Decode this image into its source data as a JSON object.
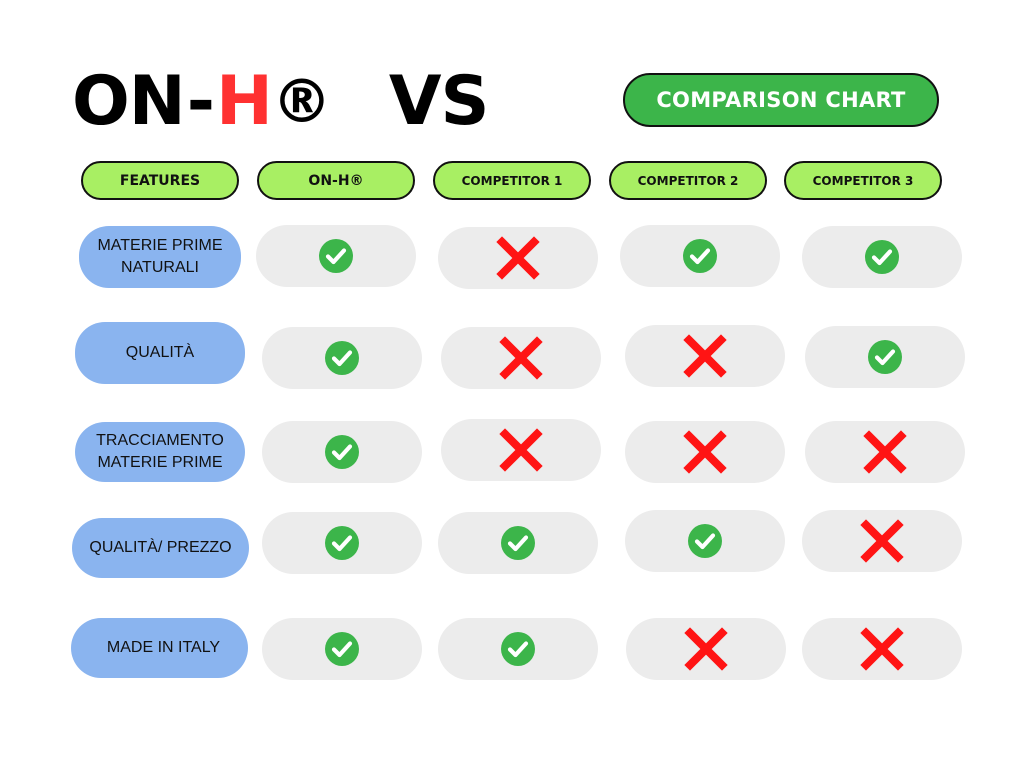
{
  "title": {
    "brand_prefix": "ON",
    "dash": "-",
    "brand_letter": "H",
    "registered": "®",
    "vs": "VS"
  },
  "badge": {
    "label": "COMPARISON CHART"
  },
  "headers": [
    "FEATURES",
    "ON-H®",
    "COMPETITOR 1",
    "COMPETITOR 2",
    "COMPETITOR 3"
  ],
  "rows": [
    {
      "feature": "MATERIE PRIME\nNATURALI",
      "values": [
        "check",
        "cross",
        "check",
        "check"
      ]
    },
    {
      "feature": "QUALITÀ",
      "values": [
        "check",
        "cross",
        "cross",
        "check"
      ]
    },
    {
      "feature": "TRACCIAMENTO\nMATERIE PRIME",
      "values": [
        "check",
        "cross",
        "cross",
        "cross"
      ]
    },
    {
      "feature": "QUALITÀ/ PREZZO",
      "values": [
        "check",
        "check",
        "check",
        "cross"
      ]
    },
    {
      "feature": "MADE IN ITALY",
      "values": [
        "check",
        "check",
        "cross",
        "cross"
      ]
    }
  ],
  "colors": {
    "brand_red": "#ff3131",
    "badge_green": "#3cb54a",
    "header_green": "#a8ef63",
    "feature_blue": "#8ab4ef",
    "cell_gray": "#ececec",
    "check_green": "#3cb54a",
    "cross_red": "#ff1414"
  },
  "icons": {
    "check": "check-circle-icon",
    "cross": "cross-icon"
  }
}
